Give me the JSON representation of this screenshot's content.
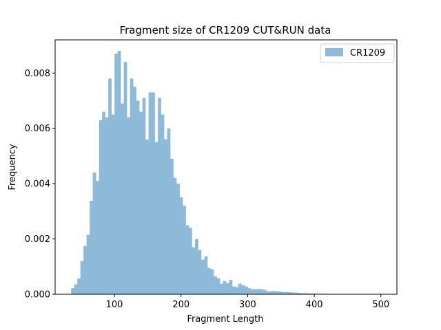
{
  "chart_data": {
    "type": "bar",
    "title": "Fragment size of CR1209 CUT&RUN data",
    "xlabel": "Fragment Length",
    "ylabel": "Frequency",
    "xlim": [
      11,
      524
    ],
    "ylim": [
      0,
      0.0092
    ],
    "xticks": [
      100,
      200,
      300,
      400,
      500
    ],
    "xtick_labels": [
      "100",
      "200",
      "300",
      "400",
      "500"
    ],
    "yticks": [
      0,
      0.002,
      0.004,
      0.006,
      0.008
    ],
    "ytick_labels": [
      "0.000",
      "0.002",
      "0.004",
      "0.006",
      "0.008"
    ],
    "bin_start": 35,
    "bin_width": 4.65,
    "series": [
      {
        "name": "CR1209",
        "color": "#8dbad9",
        "values": [
          0.00022,
          0.00036,
          0.00057,
          0.0012,
          0.00175,
          0.00215,
          0.00338,
          0.0044,
          0.0041,
          0.0063,
          0.0066,
          0.0064,
          0.0078,
          0.0065,
          0.0087,
          0.0088,
          0.0069,
          0.0084,
          0.0064,
          0.0078,
          0.0075,
          0.007,
          0.0066,
          0.0071,
          0.0056,
          0.0073,
          0.0073,
          0.0055,
          0.0071,
          0.0065,
          0.0056,
          0.006,
          0.0049,
          0.0042,
          0.004,
          0.0035,
          0.0032,
          0.0025,
          0.0024,
          0.0017,
          0.002,
          0.0016,
          0.00125,
          0.00137,
          0.00095,
          0.0009,
          0.00065,
          0.00058,
          0.00038,
          0.00048,
          0.0004,
          0.00052,
          0.00028,
          0.00026,
          0.00038,
          0.00032,
          0.00028,
          0.00022,
          0.00018,
          0.00018,
          0.00019,
          0.00018,
          0.00016,
          0.00011,
          0.00011,
          0.00012,
          0.00011,
          0.0001,
          8e-05,
          8e-05,
          8e-05,
          6e-05,
          6e-05,
          5e-05,
          4e-05,
          4e-05,
          3e-05,
          3e-05,
          3e-05,
          2e-05,
          2e-05,
          2e-05,
          1.5e-05,
          1.5e-05,
          1e-05,
          1e-05,
          1e-05,
          1e-05,
          8e-06,
          6e-06,
          6e-06,
          5e-06,
          4e-06,
          4e-06,
          4e-06,
          3e-06,
          3e-06,
          2e-06,
          2e-06,
          2e-06
        ]
      }
    ],
    "legend": {
      "position": "top-right",
      "label": "CR1209"
    },
    "grid": false
  }
}
